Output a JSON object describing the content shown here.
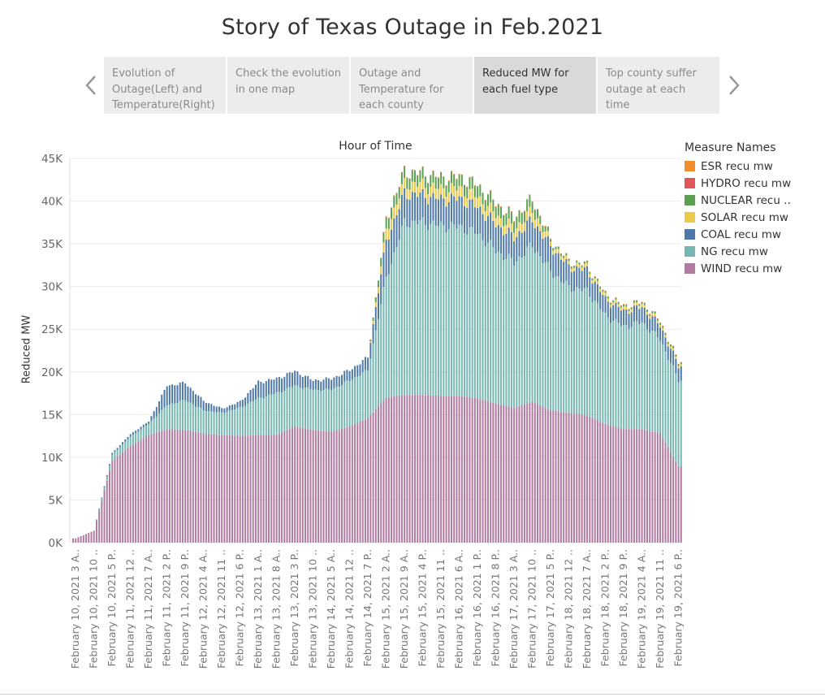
{
  "story": {
    "title": "Story of Texas Outage in Feb.2021",
    "points": [
      {
        "label": "Evolution of Outage(Left) and Temperature(Right)"
      },
      {
        "label": "Check the evolution in one map"
      },
      {
        "label": "Outage and Temperature for each county"
      },
      {
        "label": "Reduced MW for each fuel type"
      },
      {
        "label": "Top county suffer outage at each time"
      }
    ],
    "active_index": 3
  },
  "colors": {
    "ESR": "#f28e2b",
    "HYDRO": "#e15759",
    "NUCLEAR": "#59a14f",
    "SOLAR": "#edc948",
    "COAL": "#4e79a7",
    "NG": "#76b7b2",
    "WIND": "#b07aa1"
  },
  "legend": {
    "title": "Measure Names",
    "items": [
      {
        "label": "ESR recu mw",
        "color": "#f28e2b"
      },
      {
        "label": "HYDRO recu mw",
        "color": "#e15759"
      },
      {
        "label": "NUCLEAR recu ..",
        "color": "#59a14f"
      },
      {
        "label": "SOLAR recu mw",
        "color": "#edc948"
      },
      {
        "label": "COAL recu mw",
        "color": "#4e79a7"
      },
      {
        "label": "NG recu mw",
        "color": "#76b7b2"
      },
      {
        "label": "WIND recu mw",
        "color": "#b07aa1"
      }
    ]
  },
  "chart_data": {
    "type": "bar",
    "stacked": true,
    "title": "Hour of Time",
    "xlabel": "",
    "ylabel": "Reduced MW",
    "ylim": [
      0,
      45000
    ],
    "yticks": [
      0,
      5000,
      10000,
      15000,
      20000,
      25000,
      30000,
      35000,
      40000,
      45000
    ],
    "ytick_labels": [
      "0K",
      "5K",
      "10K",
      "15K",
      "20K",
      "25K",
      "30K",
      "35K",
      "40K",
      "45K"
    ],
    "grid": true,
    "legend_position": "right",
    "categories": [
      "February 10, 2021 3 A..",
      "February 10, 2021 10 ..",
      "February 10, 2021 5 P..",
      "February 11, 2021 12 ..",
      "February 11, 2021 7 A..",
      "February 11, 2021 2 P..",
      "February 11, 2021 9 P..",
      "February 12, 2021 4 A..",
      "February 12, 2021 11 ..",
      "February 12, 2021 6 P..",
      "February 13, 2021 1 A..",
      "February 13, 2021 8 A..",
      "February 13, 2021 3 P..",
      "February 13, 2021 10 ..",
      "February 14, 2021 5 A..",
      "February 14, 2021 12 ..",
      "February 14, 2021 7 P..",
      "February 15, 2021 2 A..",
      "February 15, 2021 9 A..",
      "February 15, 2021 4 P..",
      "February 15, 2021 11 ..",
      "February 16, 2021 6 A..",
      "February 16, 2021 1 P..",
      "February 16, 2021 8 P..",
      "February 17, 2021 3 A..",
      "February 17, 2021 10 ..",
      "February 17, 2021 5 P..",
      "February 18, 2021 12 ..",
      "February 18, 2021 7 A..",
      "February 18, 2021 2 P..",
      "February 18, 2021 9 P..",
      "February 19, 2021 4 A..",
      "February 19, 2021 11 ..",
      "February 19, 2021 6 P.."
    ],
    "series": [
      {
        "name": "WIND recu mw",
        "values": [
          500,
          1400,
          9600,
          11300,
          12600,
          13300,
          13200,
          12800,
          12600,
          12500,
          12600,
          12600,
          13600,
          13200,
          13000,
          13600,
          14600,
          17000,
          17300,
          17300,
          17200,
          17200,
          16900,
          16300,
          15800,
          16500,
          15500,
          15200,
          14900,
          13900,
          13300,
          13300,
          12800,
          8900
        ]
      },
      {
        "name": "NG recu mw",
        "values": [
          0,
          0,
          700,
          1100,
          1300,
          2800,
          3500,
          2700,
          2600,
          3300,
          4300,
          4900,
          4800,
          4700,
          4900,
          5400,
          5600,
          14000,
          20200,
          20200,
          19900,
          19800,
          19300,
          17900,
          17000,
          18300,
          16300,
          14700,
          14600,
          12700,
          12000,
          12500,
          11000,
          10100
        ]
      },
      {
        "name": "COAL recu mw",
        "values": [
          0,
          0,
          200,
          300,
          300,
          2300,
          2000,
          1100,
          500,
          700,
          1900,
          1700,
          1700,
          1100,
          1300,
          1200,
          1500,
          4300,
          3400,
          3200,
          3100,
          3300,
          3100,
          3100,
          2900,
          3000,
          2900,
          2400,
          2400,
          1900,
          1800,
          1800,
          1600,
          1700
        ]
      },
      {
        "name": "SOLAR recu mw",
        "values": [
          0,
          0,
          0,
          0,
          0,
          0,
          0,
          0,
          0,
          0,
          0,
          0,
          0,
          0,
          0,
          0,
          0,
          1300,
          1200,
          1200,
          1200,
          1200,
          1200,
          1100,
          1000,
          1100,
          500,
          400,
          400,
          350,
          350,
          350,
          300,
          250
        ]
      },
      {
        "name": "NUCLEAR recu mw",
        "values": [
          0,
          0,
          0,
          0,
          0,
          0,
          0,
          0,
          0,
          0,
          0,
          0,
          0,
          0,
          0,
          0,
          0,
          1300,
          1300,
          1300,
          1300,
          1300,
          1300,
          1300,
          1300,
          1300,
          300,
          200,
          200,
          200,
          200,
          200,
          200,
          200
        ]
      },
      {
        "name": "HYDRO recu mw",
        "values": [
          0,
          0,
          0,
          0,
          0,
          0,
          0,
          0,
          0,
          0,
          0,
          0,
          0,
          0,
          0,
          0,
          0,
          60,
          60,
          60,
          60,
          60,
          60,
          60,
          60,
          60,
          40,
          40,
          40,
          40,
          40,
          40,
          40,
          40
        ]
      },
      {
        "name": "ESR recu mw",
        "values": [
          0,
          0,
          0,
          0,
          0,
          0,
          0,
          0,
          0,
          0,
          0,
          0,
          0,
          0,
          0,
          0,
          0,
          40,
          40,
          40,
          40,
          40,
          40,
          40,
          40,
          40,
          30,
          30,
          30,
          30,
          30,
          30,
          30,
          30
        ]
      }
    ]
  }
}
